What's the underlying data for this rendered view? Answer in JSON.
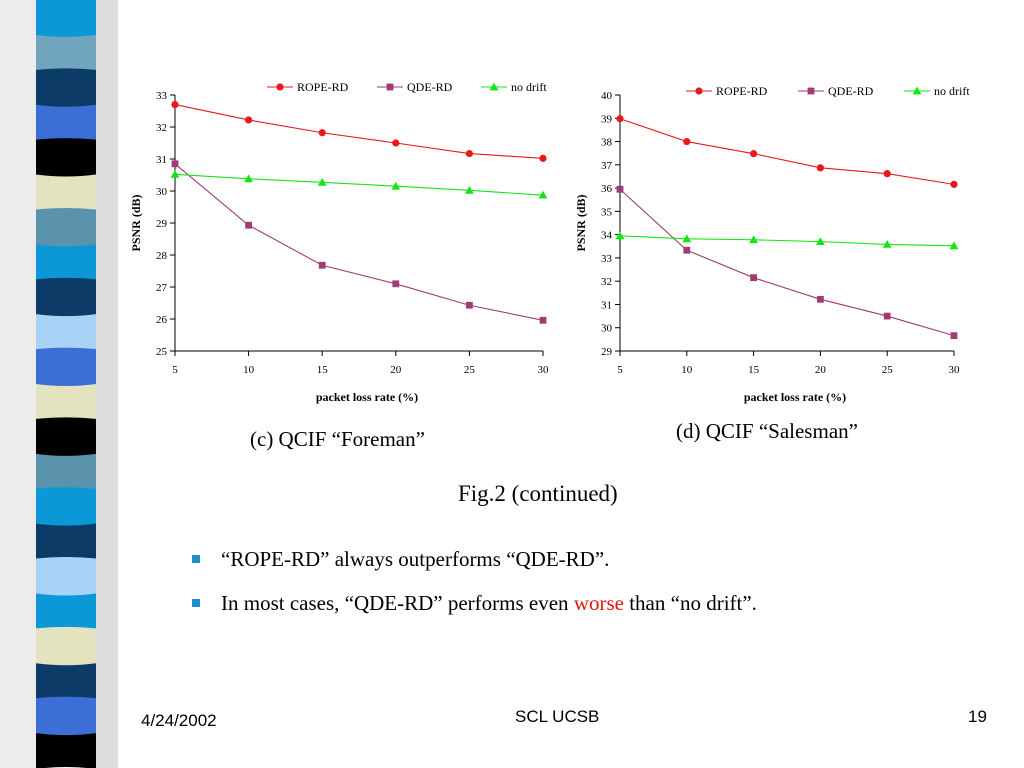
{
  "slide": {
    "date": "4/24/2002",
    "org": "SCL UCSB",
    "page": "19",
    "fig_title": "Fig.2 (continued)",
    "strip_colors": [
      "#0c97d6",
      "#6fa6be",
      "#0c3b68",
      "#3b6fd6",
      "#000000",
      "#e3e3c0",
      "#5b93ad",
      "#0c97d6",
      "#0c3b68",
      "#a9d3f6",
      "#3b6fd6",
      "#e3e3c0",
      "#000000",
      "#5b93ad",
      "#0c97d6",
      "#0c3b68",
      "#a9d3f6",
      "#0c97d6",
      "#e3e3c0",
      "#0c3b68",
      "#3b6fd6",
      "#000000"
    ],
    "bullets": [
      {
        "text": "“ROPE-RD” always outperforms “QDE-RD”."
      },
      {
        "pre": "In most cases, “QDE-RD” performs even ",
        "highlight": "worse",
        "post": " than “no drift”.",
        "highlight_color": "#e0150e"
      }
    ],
    "bullet_color": "#1a8fc9"
  },
  "chart_data": [
    {
      "type": "line",
      "caption": "(c) QCIF “Foreman”",
      "xlabel": "packet loss rate (%)",
      "ylabel": "PSNR (dB)",
      "x": [
        5,
        10,
        15,
        20,
        25,
        30
      ],
      "ylim": [
        25,
        33
      ],
      "yticks": [
        25,
        26,
        27,
        28,
        29,
        30,
        31,
        32,
        33
      ],
      "grid": false,
      "legend": "top",
      "series": [
        {
          "name": "ROPE-RD",
          "values": [
            32.7,
            32.22,
            31.82,
            31.5,
            31.17,
            31.02
          ],
          "color": "#e8191b",
          "marker": "circle"
        },
        {
          "name": "QDE-RD",
          "values": [
            30.85,
            28.93,
            27.68,
            27.1,
            26.43,
            25.96
          ],
          "color": "#a03c72",
          "marker": "square"
        },
        {
          "name": "no drift",
          "values": [
            30.52,
            30.38,
            30.27,
            30.15,
            30.02,
            29.87
          ],
          "color": "#14e514",
          "marker": "triangle"
        }
      ]
    },
    {
      "type": "line",
      "caption": "(d) QCIF “Salesman”",
      "xlabel": "packet loss rate (%)",
      "ylabel": "PSNR (dB)",
      "x": [
        5,
        10,
        15,
        20,
        25,
        30
      ],
      "ylim": [
        29,
        40
      ],
      "yticks": [
        29,
        30,
        31,
        32,
        33,
        34,
        35,
        36,
        37,
        38,
        39,
        40
      ],
      "grid": false,
      "legend": "top",
      "series": [
        {
          "name": "ROPE-RD",
          "values": [
            38.98,
            38.0,
            37.48,
            36.87,
            36.62,
            36.16
          ],
          "color": "#e8191b",
          "marker": "circle"
        },
        {
          "name": "QDE-RD",
          "values": [
            35.95,
            33.33,
            32.15,
            31.22,
            30.5,
            29.66
          ],
          "color": "#a03c72",
          "marker": "square"
        },
        {
          "name": "no drift",
          "values": [
            33.95,
            33.82,
            33.78,
            33.7,
            33.58,
            33.52
          ],
          "color": "#14e514",
          "marker": "triangle"
        }
      ]
    }
  ]
}
